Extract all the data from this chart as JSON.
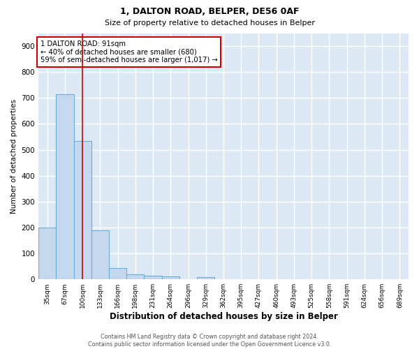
{
  "title1": "1, DALTON ROAD, BELPER, DE56 0AF",
  "title2": "Size of property relative to detached houses in Belper",
  "xlabel": "Distribution of detached houses by size in Belper",
  "ylabel": "Number of detached properties",
  "categories": [
    "35sqm",
    "67sqm",
    "100sqm",
    "133sqm",
    "166sqm",
    "198sqm",
    "231sqm",
    "264sqm",
    "296sqm",
    "329sqm",
    "362sqm",
    "395sqm",
    "427sqm",
    "460sqm",
    "493sqm",
    "525sqm",
    "558sqm",
    "591sqm",
    "624sqm",
    "656sqm",
    "689sqm"
  ],
  "values": [
    200,
    715,
    535,
    190,
    45,
    20,
    13,
    12,
    0,
    8,
    0,
    0,
    0,
    0,
    0,
    0,
    0,
    0,
    0,
    0,
    0
  ],
  "bar_color": "#c5d8ee",
  "bar_edge_color": "#6aaed6",
  "red_line_index": 2,
  "annotation_text": "1 DALTON ROAD: 91sqm\n← 40% of detached houses are smaller (680)\n59% of semi-detached houses are larger (1,017) →",
  "annotation_box_color": "#ffffff",
  "annotation_box_edge_color": "#cc0000",
  "red_line_color": "#cc0000",
  "background_color": "#dce9f5",
  "grid_color": "#ffffff",
  "footer_text": "Contains HM Land Registry data © Crown copyright and database right 2024.\nContains public sector information licensed under the Open Government Licence v3.0.",
  "ylim": [
    0,
    950
  ],
  "yticks": [
    0,
    100,
    200,
    300,
    400,
    500,
    600,
    700,
    800,
    900
  ]
}
